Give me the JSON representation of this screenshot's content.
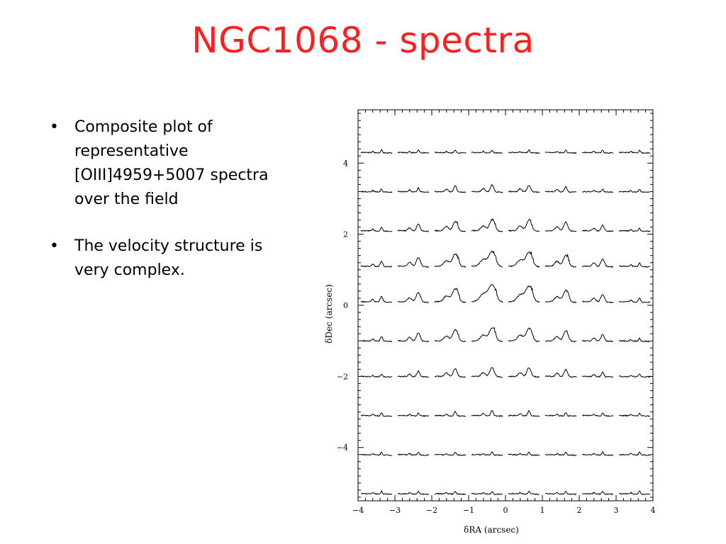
{
  "slide": {
    "title": "NGC1068 - spectra",
    "bullets": [
      "Composite plot of representative [OIII]4959+5007 spectra over the field",
      "The velocity structure is very complex."
    ],
    "bullet_symbol": "•"
  },
  "chart_data": {
    "type": "line",
    "title": "",
    "xlabel": "δRA (arcsec)",
    "ylabel": "δDec (arcsec)",
    "xlim": [
      -4,
      4
    ],
    "ylim": [
      -5.5,
      5.5
    ],
    "xticks": [
      "−4",
      "−3",
      "−2",
      "−1",
      "0",
      "1",
      "2",
      "3",
      "4"
    ],
    "yticks": [
      "4",
      "2",
      "0",
      "−2",
      "−4"
    ],
    "grid": false,
    "columns_dRA": [
      -3.5,
      -2.5,
      -1.5,
      -0.5,
      0.5,
      1.5,
      2.5,
      3.5
    ],
    "rows_dDec": [
      4.5,
      3.4,
      2.3,
      1.3,
      0.3,
      -0.8,
      -1.8,
      -2.9,
      -4.0,
      -5.1
    ],
    "line_color": "#000000"
  }
}
